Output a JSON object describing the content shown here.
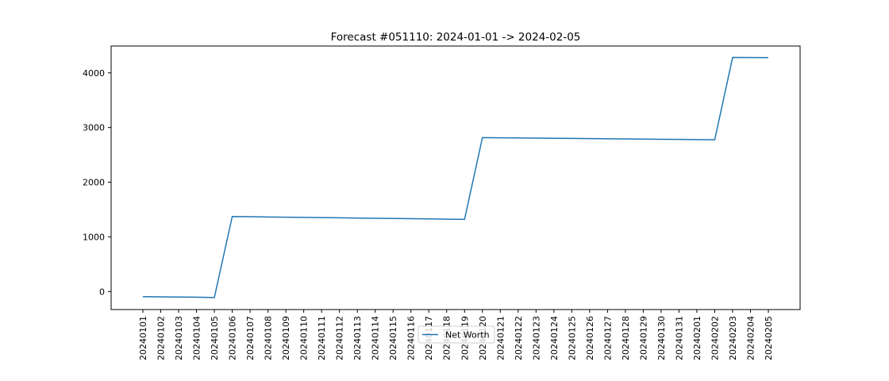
{
  "chart_data": {
    "type": "line",
    "title": "Forecast #051110: 2024-01-01 -> 2024-02-05",
    "xlabel": "",
    "ylabel": "",
    "x": [
      "20240101",
      "20240102",
      "20240103",
      "20240104",
      "20240105",
      "20240106",
      "20240107",
      "20240108",
      "20240109",
      "20240110",
      "20240111",
      "20240112",
      "20240113",
      "20240114",
      "20240115",
      "20240116",
      "20240117",
      "20240118",
      "20240119",
      "20240120",
      "20240121",
      "20240122",
      "20240123",
      "20240124",
      "20240125",
      "20240126",
      "20240127",
      "20240128",
      "20240129",
      "20240130",
      "20240131",
      "20240201",
      "20240202",
      "20240203",
      "20240204",
      "20240205"
    ],
    "series": [
      {
        "name": "Net Worth",
        "color": "#1f77b4",
        "values": [
          -95,
          -98,
          -101,
          -104,
          -110,
          1372,
          1368,
          1364,
          1360,
          1356,
          1352,
          1348,
          1344,
          1340,
          1336,
          1332,
          1328,
          1324,
          1320,
          2815,
          2812,
          2809,
          2806,
          2803,
          2800,
          2797,
          2794,
          2791,
          2788,
          2785,
          2782,
          2779,
          2776,
          4282,
          4280,
          4278
        ]
      }
    ],
    "yticks": [
      0,
      1000,
      2000,
      3000,
      4000
    ],
    "ylim": [
      -330,
      4490
    ],
    "grid": false,
    "legend": "bottom-center"
  }
}
